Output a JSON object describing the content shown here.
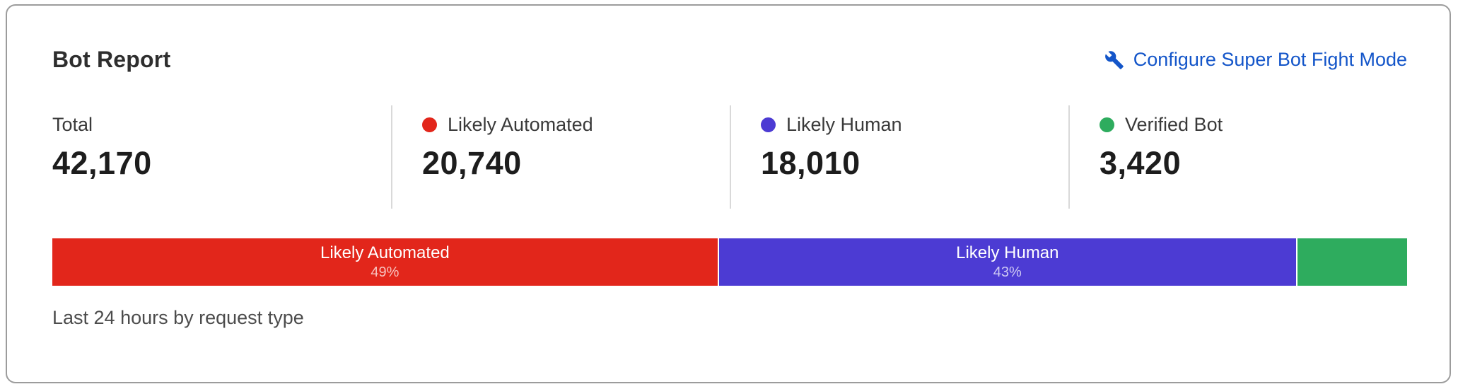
{
  "card": {
    "title": "Bot Report",
    "action_label": "Configure Super Bot Fight Mode",
    "action_icon": "wrench-icon",
    "caption": "Last 24 hours by request type",
    "stats": [
      {
        "label": "Total",
        "value": "42,170"
      },
      {
        "label": "Likely Automated",
        "value": "20,740",
        "dot_color": "#e2261b"
      },
      {
        "label": "Likely Human",
        "value": "18,010",
        "dot_color": "#4c3bd3"
      },
      {
        "label": "Verified Bot",
        "value": "3,420",
        "dot_color": "#2eac5e"
      }
    ]
  },
  "chart_data": {
    "type": "bar",
    "stacked": true,
    "orientation": "horizontal",
    "title": "Bot Report",
    "categories": [
      "Likely Automated",
      "Likely Human",
      "Verified Bot"
    ],
    "values": [
      20740,
      18010,
      3420
    ],
    "total": 42170,
    "widths_pct": [
      49.1,
      42.7,
      8.2
    ],
    "colors": [
      "#e2261b",
      "#4c3bd3",
      "#2eac5e"
    ],
    "bar_labels": [
      {
        "label": "Likely Automated",
        "pct": "49%"
      },
      {
        "label": "Likely Human",
        "pct": "43%"
      },
      {
        "label": "",
        "pct": ""
      }
    ],
    "legend_position": "none",
    "grid": false
  },
  "colors": {
    "link_blue": "#1355c9",
    "card_border": "#9c9c9c",
    "divider": "#d9d9d9",
    "title_text": "#2e2e2e",
    "label_text": "#3a3a3a",
    "value_text": "#1d1d1d",
    "caption_text": "#4c4c4c"
  }
}
